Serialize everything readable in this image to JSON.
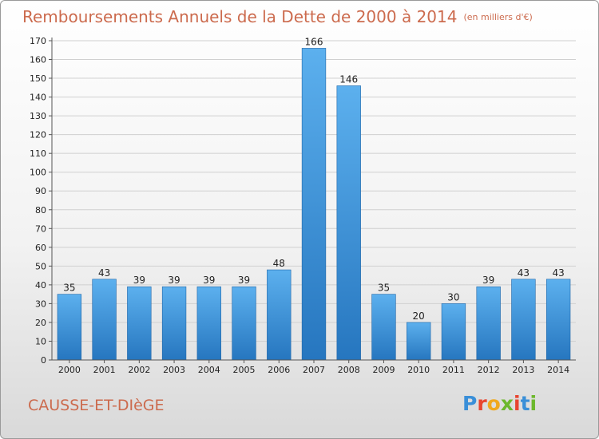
{
  "header": {
    "title": "Remboursements Annuels de la Dette de 2000 à 2014",
    "unit": "(en milliers d'€)"
  },
  "footer": {
    "commune": "CAUSSE-ET-DIèGE",
    "logo_text": "Proxiti",
    "logo_colors": [
      "#3a8fd8",
      "#e8452f",
      "#f0a81e",
      "#6cb82c",
      "#e8452f",
      "#3a8fd8",
      "#6cb82c"
    ]
  },
  "chart_data": {
    "type": "bar",
    "title": "Remboursements Annuels de la Dette de 2000 à 2014",
    "subtitle": "(en milliers d'€)",
    "categories": [
      "2000",
      "2001",
      "2002",
      "2003",
      "2004",
      "2005",
      "2006",
      "2007",
      "2008",
      "2009",
      "2010",
      "2011",
      "2012",
      "2013",
      "2014"
    ],
    "values": [
      35,
      43,
      39,
      39,
      39,
      39,
      48,
      166,
      146,
      35,
      20,
      30,
      39,
      43,
      43
    ],
    "ylim": [
      0,
      170
    ],
    "yticks": [
      0,
      10,
      20,
      30,
      40,
      50,
      60,
      70,
      80,
      90,
      100,
      110,
      120,
      130,
      140,
      150,
      160,
      170
    ],
    "grid": true,
    "bar_color": "#3b8fd6",
    "grid_color": "#d0d0d0"
  }
}
